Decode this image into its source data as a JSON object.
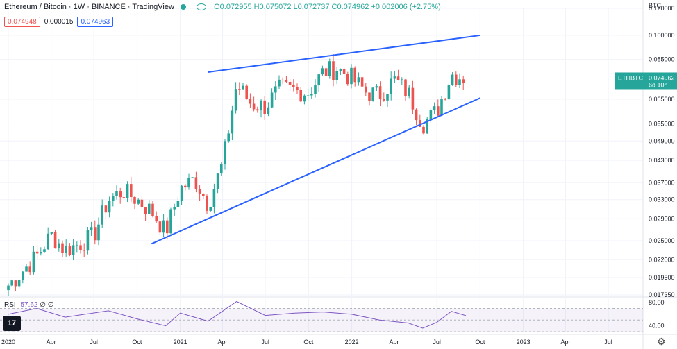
{
  "header": {
    "symbol": "Ethereum / Bitcoin · 1W · BINANCE · TradingView",
    "ohlc": "O0.072955 H0.075072 L0.072737 C0.074962 +0.002006 (+2.75%)",
    "bid": "0.074948",
    "spread": "0.000015",
    "ask": "0.074963",
    "currency": "BTC"
  },
  "price_tag": {
    "ticker": "ETHBTC",
    "price": "0.074962",
    "countdown": "6d 10h"
  },
  "rsi": {
    "label": "RSI",
    "value": "57.62",
    "extra1": "∅",
    "extra2": "∅",
    "ticks": [
      "80.00",
      "40.00"
    ]
  },
  "colors": {
    "up": "#26a69a",
    "down": "#ef5350",
    "trendline": "#2962ff",
    "rsi_line": "#7e57c2",
    "rsi_band": "#7e57c2"
  },
  "icons": {
    "logo": "tradingview-logo-icon",
    "settings": "gear-icon",
    "visibility": "eye-icon"
  },
  "chart_data": {
    "type": "candlestick",
    "title": "Ethereum / Bitcoin · 1W · BINANCE",
    "y_scale": "log",
    "y_ticks": [
      0.01735,
      0.0195,
      0.022,
      0.025,
      0.029,
      0.033,
      0.037,
      0.043,
      0.049,
      0.055,
      0.065,
      0.085,
      0.1,
      0.12
    ],
    "y_tick_labels": [
      "0.017350",
      "0.019500",
      "0.022000",
      "0.025000",
      "0.029000",
      "0.033000",
      "0.037000",
      "0.043000",
      "0.049000",
      "0.055000",
      "0.065000",
      "0.085000",
      "0.100000",
      "0.120000"
    ],
    "x_labels": [
      "2020",
      "Apr",
      "Jul",
      "Oct",
      "2021",
      "Apr",
      "Jul",
      "Oct",
      "2022",
      "Apr",
      "Jul",
      "Oct",
      "2023",
      "Apr",
      "Jul"
    ],
    "x_range": [
      "2020-01",
      "2023-09"
    ],
    "last_price": 0.074962,
    "ohlc_last": {
      "open": 0.072955,
      "high": 0.075072,
      "low": 0.072737,
      "close": 0.074962
    },
    "close_series": [
      {
        "date": "2020-01",
        "value": 0.0185
      },
      {
        "date": "2020-03",
        "value": 0.0225
      },
      {
        "date": "2020-04",
        "value": 0.026
      },
      {
        "date": "2020-05",
        "value": 0.0235
      },
      {
        "date": "2020-06",
        "value": 0.0245
      },
      {
        "date": "2020-07",
        "value": 0.026
      },
      {
        "date": "2020-08",
        "value": 0.033
      },
      {
        "date": "2020-09",
        "value": 0.035
      },
      {
        "date": "2020-10",
        "value": 0.033
      },
      {
        "date": "2020-11",
        "value": 0.0305
      },
      {
        "date": "2020-12",
        "value": 0.0265
      },
      {
        "date": "2021-01",
        "value": 0.0355
      },
      {
        "date": "2021-02",
        "value": 0.038
      },
      {
        "date": "2021-03",
        "value": 0.032
      },
      {
        "date": "2021-04",
        "value": 0.042
      },
      {
        "date": "2021-05",
        "value": 0.072
      },
      {
        "date": "2021-06",
        "value": 0.063
      },
      {
        "date": "2021-07",
        "value": 0.062
      },
      {
        "date": "2021-08",
        "value": 0.07
      },
      {
        "date": "2021-09",
        "value": 0.069
      },
      {
        "date": "2021-10",
        "value": 0.068
      },
      {
        "date": "2021-11",
        "value": 0.078
      },
      {
        "date": "2021-12",
        "value": 0.08
      },
      {
        "date": "2022-01",
        "value": 0.075
      },
      {
        "date": "2022-02",
        "value": 0.068
      },
      {
        "date": "2022-03",
        "value": 0.067
      },
      {
        "date": "2022-04",
        "value": 0.074
      },
      {
        "date": "2022-05",
        "value": 0.068
      },
      {
        "date": "2022-06",
        "value": 0.055
      },
      {
        "date": "2022-07",
        "value": 0.06
      },
      {
        "date": "2022-08",
        "value": 0.077
      },
      {
        "date": "2022-09",
        "value": 0.075
      }
    ],
    "trendlines": [
      {
        "name": "upper",
        "from": {
          "date": "2021-03",
          "value": 0.078
        },
        "to": {
          "date": "2022-10",
          "value": 0.1
        }
      },
      {
        "name": "lower",
        "from": {
          "date": "2020-11",
          "value": 0.0245
        },
        "to": {
          "date": "2022-10",
          "value": 0.0655
        }
      }
    ],
    "rsi_series": [
      {
        "date": "2020-01",
        "value": 60
      },
      {
        "date": "2020-03",
        "value": 70
      },
      {
        "date": "2020-05",
        "value": 55
      },
      {
        "date": "2020-08",
        "value": 66
      },
      {
        "date": "2020-10",
        "value": 52
      },
      {
        "date": "2020-12",
        "value": 40
      },
      {
        "date": "2021-01",
        "value": 62
      },
      {
        "date": "2021-03",
        "value": 48
      },
      {
        "date": "2021-05",
        "value": 82
      },
      {
        "date": "2021-07",
        "value": 58
      },
      {
        "date": "2021-09",
        "value": 62
      },
      {
        "date": "2021-11",
        "value": 64
      },
      {
        "date": "2022-01",
        "value": 60
      },
      {
        "date": "2022-03",
        "value": 50
      },
      {
        "date": "2022-05",
        "value": 45
      },
      {
        "date": "2022-06",
        "value": 36
      },
      {
        "date": "2022-07",
        "value": 46
      },
      {
        "date": "2022-08",
        "value": 65
      },
      {
        "date": "2022-09",
        "value": 57.62
      }
    ],
    "rsi_levels": [
      70,
      50,
      30
    ]
  }
}
